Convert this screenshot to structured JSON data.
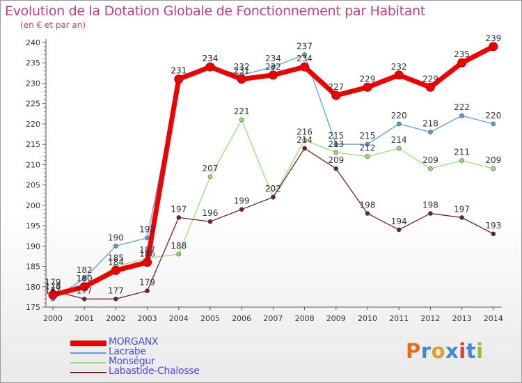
{
  "header": {
    "title": "Evolution de la Dotation Globale de Fonctionnement par Habitant",
    "subtitle": "(en € et par an)"
  },
  "brand": {
    "letters": [
      "P",
      "r",
      "o",
      "x",
      "i",
      "t",
      "i"
    ],
    "colors": [
      "#e07020",
      "#3a8ad8",
      "#e0a020",
      "#3a8ad8",
      "#d84040",
      "#3a8ad8",
      "#90c030"
    ]
  },
  "chart_data": {
    "type": "line",
    "x": [
      "2000",
      "2001",
      "2002",
      "2003",
      "2004",
      "2005",
      "2006",
      "2007",
      "2008",
      "2009",
      "2010",
      "2011",
      "2012",
      "2013",
      "2014"
    ],
    "ylim": [
      175,
      240
    ],
    "yticks": [
      175,
      180,
      185,
      190,
      195,
      200,
      205,
      210,
      215,
      220,
      225,
      230,
      235,
      240
    ],
    "grid": false,
    "legend_position": "bottom-left",
    "series": [
      {
        "name": "MORGANX",
        "color": "#ee0000",
        "values": [
          178,
          180,
          184,
          186,
          231,
          234,
          231,
          232,
          234,
          227,
          229,
          232,
          229,
          235,
          239
        ]
      },
      {
        "name": "Lacrabe",
        "color": "#5c9fd6",
        "values": [
          177,
          182,
          190,
          192,
          231,
          234,
          232,
          234,
          237,
          215,
          215,
          220,
          218,
          222,
          220
        ]
      },
      {
        "name": "Monségur",
        "color": "#99dd77",
        "values": [
          178,
          180,
          185,
          187,
          188,
          207,
          221,
          202,
          216,
          213,
          212,
          214,
          209,
          211,
          209
        ]
      },
      {
        "name": "Labastide-Chalosse",
        "color": "#6b2222",
        "values": [
          179,
          177,
          177,
          179,
          197,
          196,
          199,
          202,
          214,
          209,
          198,
          194,
          198,
          197,
          193
        ]
      }
    ]
  }
}
